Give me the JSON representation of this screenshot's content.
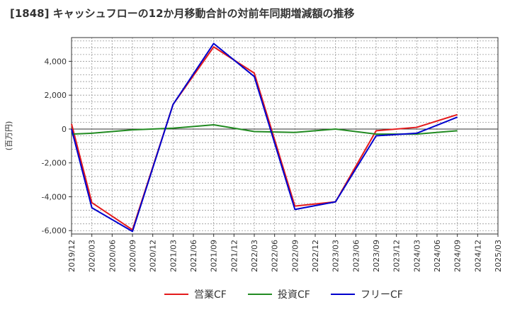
{
  "chart_data": {
    "type": "line",
    "title": "[1848]  キャッシュフローの12か月移動合計の対前年同期増減額の推移",
    "ylabel": "(百万円)",
    "xlabel": "",
    "ylim": [
      -6200,
      5400
    ],
    "yticks": [
      4000,
      2000,
      0,
      -2000,
      -4000,
      -6000
    ],
    "ytick_labels": [
      "4,000",
      "2,000",
      "0",
      "-2,000",
      "-4,000",
      "-6,000"
    ],
    "x_ticks": [
      "2019/12",
      "2020/03",
      "2020/06",
      "2020/09",
      "2020/12",
      "2021/03",
      "2021/06",
      "2021/09",
      "2021/12",
      "2022/03",
      "2022/06",
      "2022/09",
      "2022/12",
      "2023/03",
      "2023/06",
      "2023/09",
      "2023/12",
      "2024/03",
      "2024/06",
      "2024/09",
      "2024/12",
      "2025/03"
    ],
    "series": [
      {
        "name": "営業CF",
        "color": "#e41a1c",
        "points": [
          {
            "t": 0,
            "v": 300
          },
          {
            "t": 1,
            "v": -4350
          },
          {
            "t": 3,
            "v": -5950
          },
          {
            "t": 5,
            "v": 1450
          },
          {
            "t": 7,
            "v": 4850
          },
          {
            "t": 9,
            "v": 3300
          },
          {
            "t": 11,
            "v": -4550
          },
          {
            "t": 13,
            "v": -4300
          },
          {
            "t": 15,
            "v": -100
          },
          {
            "t": 17,
            "v": 100
          },
          {
            "t": 19,
            "v": 850
          }
        ]
      },
      {
        "name": "投資CF",
        "color": "#228b22",
        "points": [
          {
            "t": 0,
            "v": -300
          },
          {
            "t": 1,
            "v": -250
          },
          {
            "t": 3,
            "v": -50
          },
          {
            "t": 5,
            "v": 50
          },
          {
            "t": 7,
            "v": 250
          },
          {
            "t": 9,
            "v": -150
          },
          {
            "t": 11,
            "v": -200
          },
          {
            "t": 13,
            "v": 0
          },
          {
            "t": 15,
            "v": -300
          },
          {
            "t": 17,
            "v": -300
          },
          {
            "t": 19,
            "v": -100
          }
        ]
      },
      {
        "name": "フリーCF",
        "color": "#0000cd",
        "points": [
          {
            "t": 0,
            "v": 0
          },
          {
            "t": 1,
            "v": -4650
          },
          {
            "t": 3,
            "v": -6050
          },
          {
            "t": 5,
            "v": 1450
          },
          {
            "t": 7,
            "v": 5050
          },
          {
            "t": 9,
            "v": 3100
          },
          {
            "t": 11,
            "v": -4750
          },
          {
            "t": 13,
            "v": -4300
          },
          {
            "t": 15,
            "v": -400
          },
          {
            "t": 17,
            "v": -250
          },
          {
            "t": 19,
            "v": 700
          }
        ]
      }
    ],
    "legend": [
      "営業CF",
      "投資CF",
      "フリーCF"
    ],
    "grid": true,
    "legend_position": "bottom"
  }
}
